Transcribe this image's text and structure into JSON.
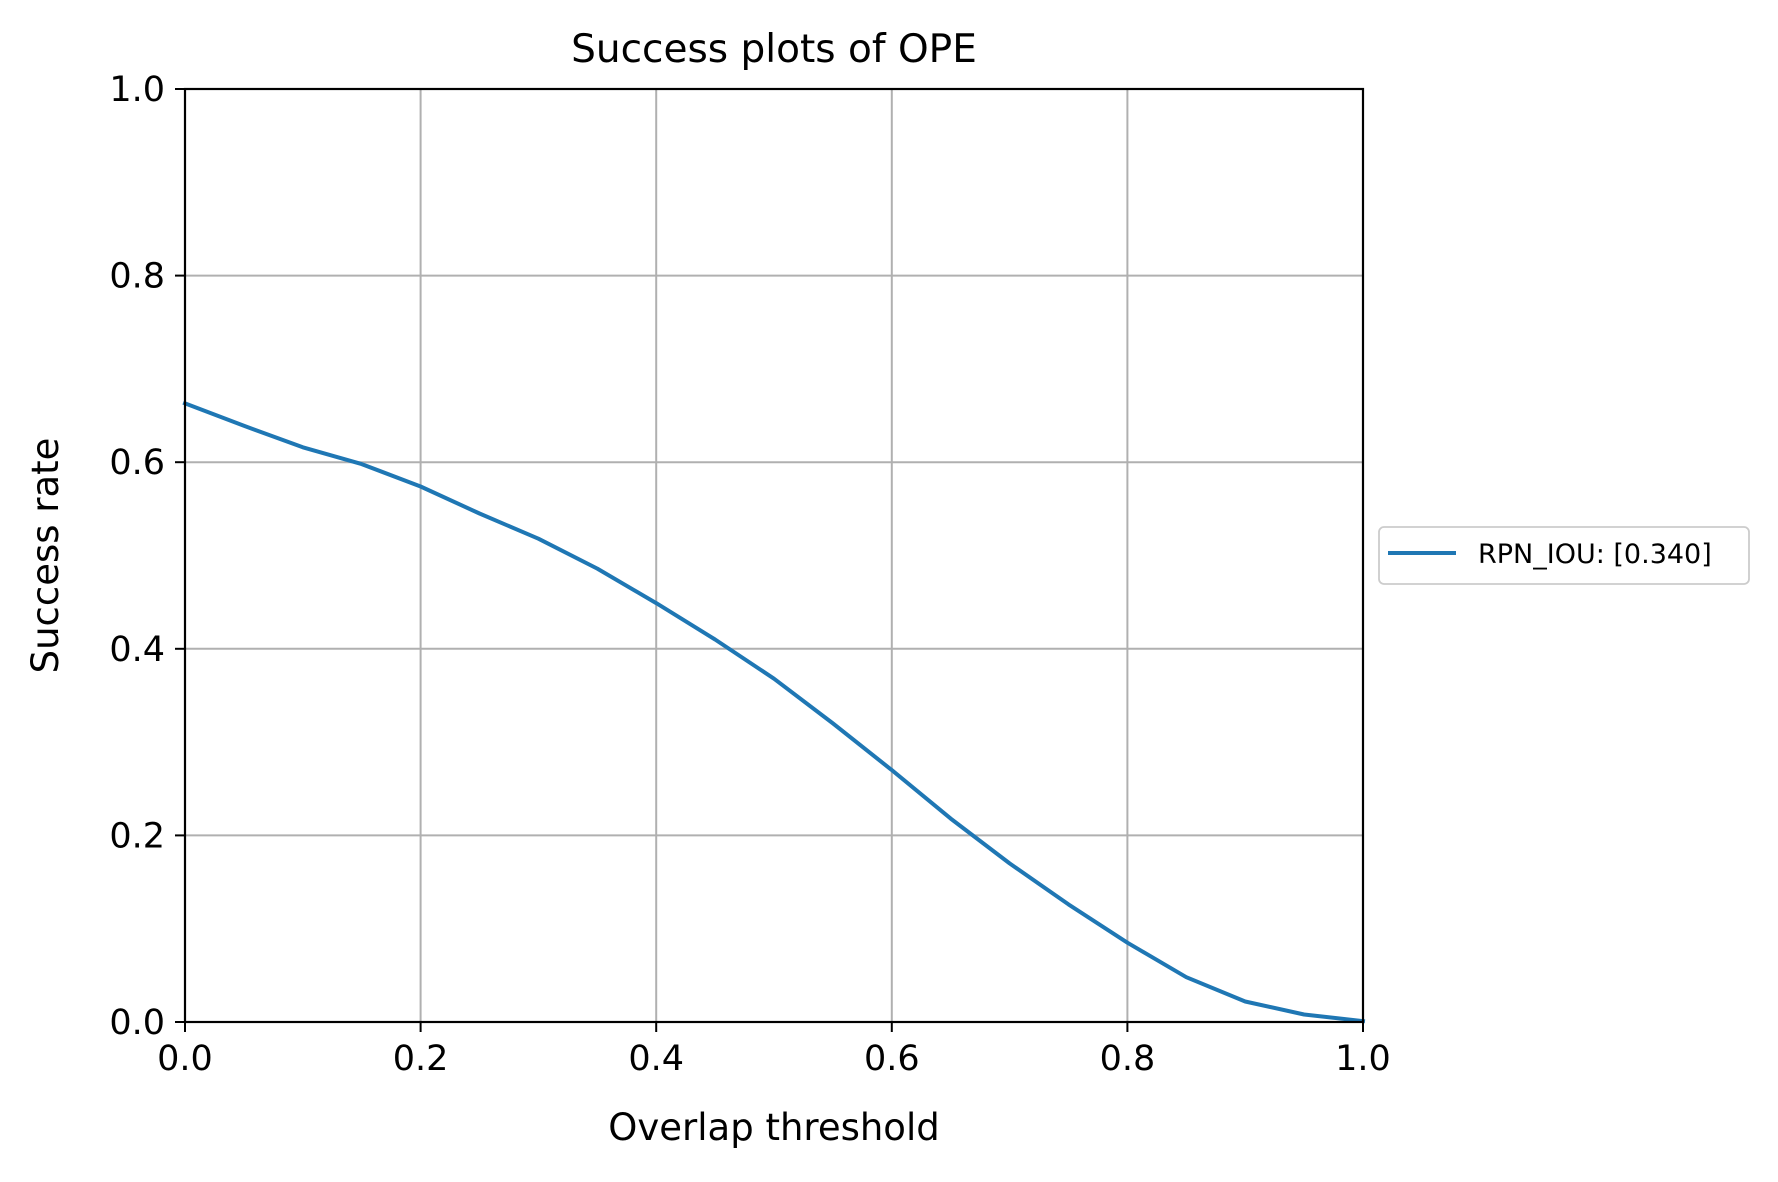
{
  "chart_data": {
    "type": "line",
    "title": "Success plots of OPE",
    "xlabel": "Overlap threshold",
    "ylabel": "Success rate",
    "xlim": [
      0.0,
      1.0
    ],
    "ylim": [
      0.0,
      1.0
    ],
    "x_ticks": [
      "0.0",
      "0.2",
      "0.4",
      "0.6",
      "0.8",
      "1.0"
    ],
    "y_ticks": [
      "0.0",
      "0.2",
      "0.4",
      "0.6",
      "0.8",
      "1.0"
    ],
    "grid": true,
    "legend_placement": "right, outside plot",
    "series": [
      {
        "name": "RPN_IOU: [0.340]",
        "color": "#1f77b4",
        "x": [
          0.0,
          0.05,
          0.1,
          0.15,
          0.2,
          0.25,
          0.3,
          0.35,
          0.4,
          0.45,
          0.5,
          0.55,
          0.6,
          0.65,
          0.7,
          0.75,
          0.8,
          0.85,
          0.9,
          0.95,
          1.0
        ],
        "y": [
          0.663,
          0.639,
          0.616,
          0.598,
          0.574,
          0.545,
          0.518,
          0.486,
          0.449,
          0.41,
          0.368,
          0.32,
          0.27,
          0.218,
          0.17,
          0.126,
          0.085,
          0.048,
          0.022,
          0.008,
          0.001
        ]
      }
    ]
  }
}
